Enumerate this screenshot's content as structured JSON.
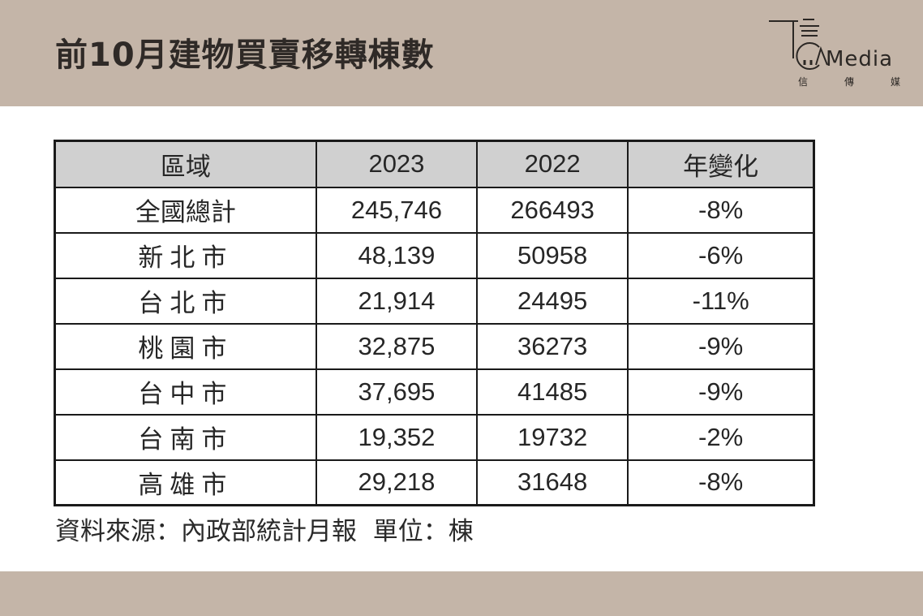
{
  "header": {
    "title": "前10月建物買賣移轉棟數",
    "logo_word": "Media",
    "logo_sub": [
      "信",
      "傳",
      "媒"
    ],
    "band_color": "#c4b5a8"
  },
  "table": {
    "columns": [
      "區域",
      "2023",
      "2022",
      "年變化"
    ],
    "rows": [
      [
        "全國總計",
        "245,746",
        "266493",
        "-8%"
      ],
      [
        "新北市",
        "48,139",
        "50958",
        "-6%"
      ],
      [
        "台北市",
        "21,914",
        "24495",
        "-11%"
      ],
      [
        "桃園市",
        "32,875",
        "36273",
        "-9%"
      ],
      [
        "台中市",
        "37,695",
        "41485",
        "-9%"
      ],
      [
        "台南市",
        "19,352",
        "19732",
        "-2%"
      ],
      [
        "高雄市",
        "29,218",
        "31648",
        "-8%"
      ]
    ]
  },
  "footer": {
    "source": "資料來源：內政部統計月報  單位：棟"
  }
}
